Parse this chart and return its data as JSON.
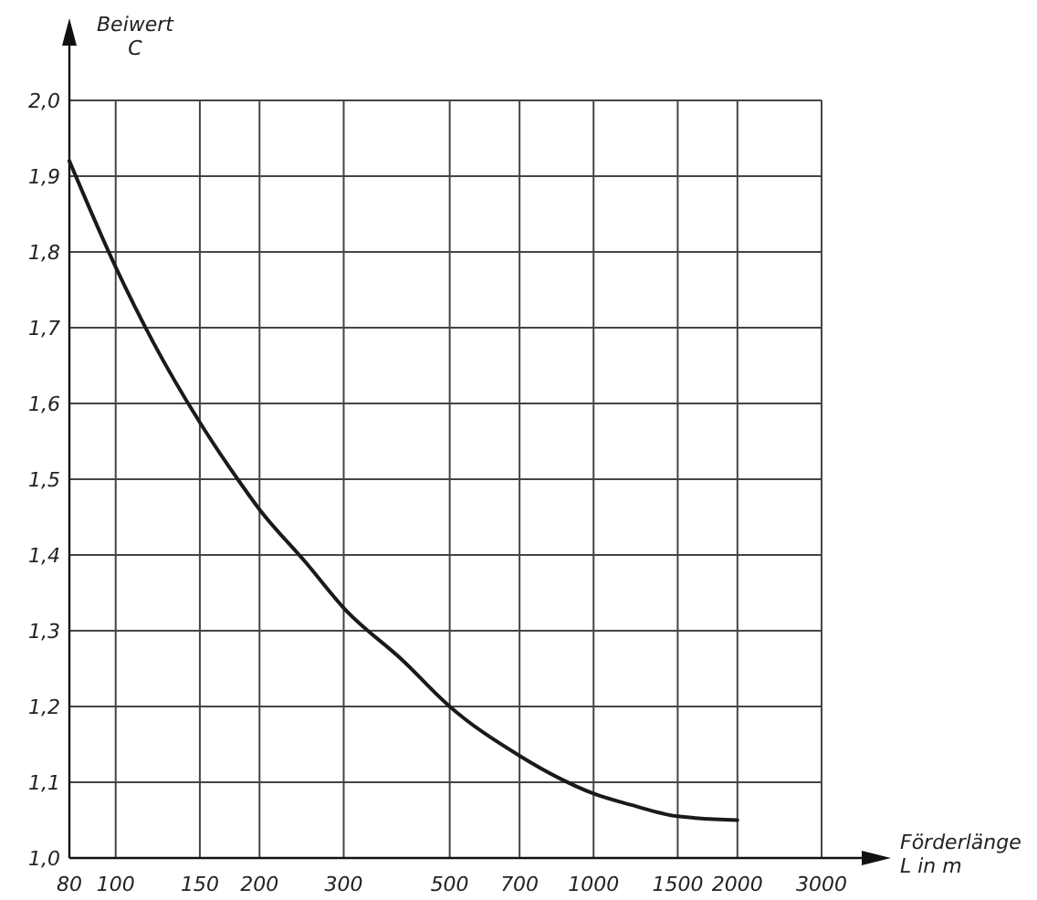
{
  "chart_data": {
    "type": "line",
    "xlabel": "Förderlänge\nL in m",
    "ylabel": "Beiwert\nC",
    "x": [
      80,
      100,
      120,
      150,
      180,
      200,
      250,
      300,
      400,
      500,
      700,
      850,
      1000,
      1200,
      1500,
      2000
    ],
    "series": [
      {
        "color": "#1a1a1a",
        "values": [
          1.92,
          1.78,
          1.68,
          1.575,
          1.5,
          1.46,
          1.39,
          1.33,
          1.26,
          1.2,
          1.135,
          1.105,
          1.085,
          1.07,
          1.055,
          1.05
        ]
      }
    ],
    "log": "x",
    "xlim": [
      80,
      3000
    ],
    "xticks": [
      80,
      100,
      150,
      200,
      300,
      500,
      700,
      1000,
      1500,
      2000,
      3000
    ],
    "ylim": [
      1.0,
      2.0
    ],
    "yticks": [
      {
        "value": 1.0,
        "label": "1,0"
      },
      {
        "value": 1.1,
        "label": "1,1"
      },
      {
        "value": 1.2,
        "label": "1,2"
      },
      {
        "value": 1.3,
        "label": "1,3"
      },
      {
        "value": 1.4,
        "label": "1,4"
      },
      {
        "value": 1.5,
        "label": "1,5"
      },
      {
        "value": 1.6,
        "label": "1,6"
      },
      {
        "value": 1.7,
        "label": "1,7"
      },
      {
        "value": 1.8,
        "label": "1,8"
      },
      {
        "value": 1.9,
        "label": "1,9"
      },
      {
        "value": 2.0,
        "label": "2,0"
      }
    ],
    "grid": true,
    "marker": "none",
    "line_style": "solid"
  }
}
